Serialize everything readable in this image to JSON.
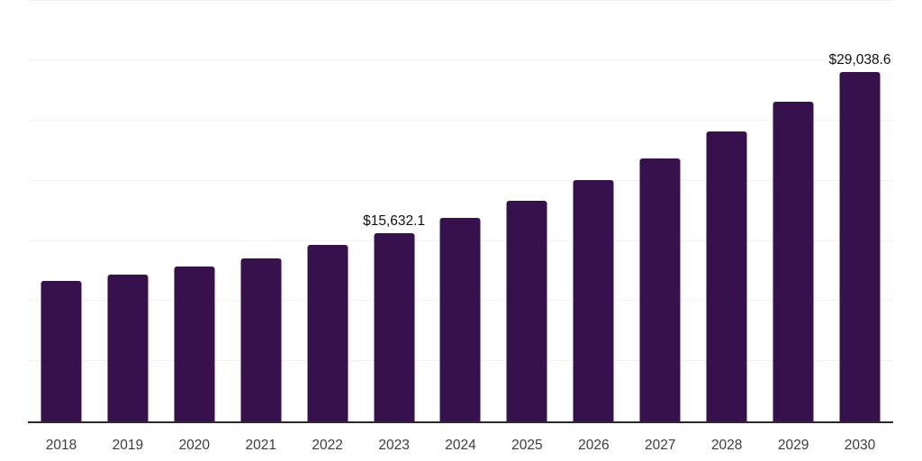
{
  "chart_data": {
    "type": "bar",
    "title": "",
    "xlabel": "",
    "ylabel": "",
    "categories": [
      "2018",
      "2019",
      "2020",
      "2021",
      "2022",
      "2023",
      "2024",
      "2025",
      "2026",
      "2027",
      "2028",
      "2029",
      "2030"
    ],
    "values": [
      11700,
      12200,
      12850,
      13550,
      14650,
      15632.1,
      16900,
      18350,
      20050,
      21850,
      24100,
      26550,
      29038.6
    ],
    "value_labels": {
      "2023": "$15,632.1",
      "2030": "$29,038.6"
    },
    "ylim": [
      0,
      35000
    ],
    "grid_step": 5000,
    "grid": true,
    "legend": false,
    "axis_line": "bottom-only",
    "colors": {
      "bar": "#36114D",
      "axis": "#2b2b2b",
      "gridline": "#f1f1f3",
      "tick_label": "#3d3d3d",
      "value_label": "#111111"
    }
  }
}
